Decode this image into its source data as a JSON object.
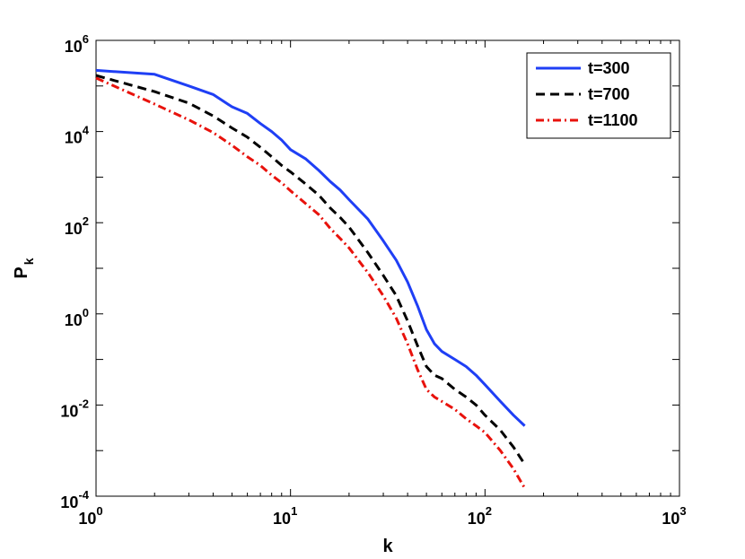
{
  "chart_data": {
    "type": "line",
    "xscale": "log",
    "yscale": "log",
    "xlim": [
      1,
      1000
    ],
    "ylim": [
      0.0001,
      1000000
    ],
    "xlabel": "k",
    "ylabel": "P",
    "ylabel_subscript": "k",
    "x_ticks": [
      {
        "value": 1,
        "base": "10",
        "exp": "0"
      },
      {
        "value": 10,
        "base": "10",
        "exp": "1"
      },
      {
        "value": 100,
        "base": "10",
        "exp": "2"
      },
      {
        "value": 1000,
        "base": "10",
        "exp": "3"
      }
    ],
    "y_ticks": [
      {
        "value": 0.0001,
        "base": "10",
        "exp": "-4"
      },
      {
        "value": 0.01,
        "base": "10",
        "exp": "-2"
      },
      {
        "value": 1,
        "base": "10",
        "exp": "0"
      },
      {
        "value": 100,
        "base": "10",
        "exp": "2"
      },
      {
        "value": 10000,
        "base": "10",
        "exp": "4"
      },
      {
        "value": 1000000,
        "base": "10",
        "exp": "6"
      }
    ],
    "grid": false,
    "legend_position": "top-right",
    "series": [
      {
        "name": "t=300",
        "color": "#1f3ff5",
        "style": "solid",
        "points": [
          [
            1,
            220000
          ],
          [
            2,
            180000
          ],
          [
            3,
            100000
          ],
          [
            4,
            65000
          ],
          [
            5,
            35000
          ],
          [
            6,
            25000
          ],
          [
            7,
            15000
          ],
          [
            8,
            10000
          ],
          [
            9,
            6500
          ],
          [
            10,
            4000
          ],
          [
            12,
            2500
          ],
          [
            14,
            1400
          ],
          [
            16,
            800
          ],
          [
            18,
            520
          ],
          [
            20,
            320
          ],
          [
            25,
            120
          ],
          [
            30,
            40
          ],
          [
            35,
            15
          ],
          [
            40,
            5
          ],
          [
            45,
            1.5
          ],
          [
            50,
            0.45
          ],
          [
            55,
            0.22
          ],
          [
            60,
            0.15
          ],
          [
            70,
            0.1
          ],
          [
            80,
            0.07
          ],
          [
            90,
            0.045
          ],
          [
            100,
            0.028
          ],
          [
            120,
            0.012
          ],
          [
            140,
            0.006
          ],
          [
            160,
            0.0035
          ]
        ]
      },
      {
        "name": "t=700",
        "color": "#000000",
        "style": "dashed",
        "points": [
          [
            1,
            170000
          ],
          [
            2,
            75000
          ],
          [
            3,
            42000
          ],
          [
            4,
            22000
          ],
          [
            5,
            12000
          ],
          [
            6,
            7500
          ],
          [
            7,
            4500
          ],
          [
            8,
            2800
          ],
          [
            9,
            1800
          ],
          [
            10,
            1300
          ],
          [
            12,
            700
          ],
          [
            14,
            400
          ],
          [
            16,
            210
          ],
          [
            18,
            130
          ],
          [
            20,
            80
          ],
          [
            25,
            22
          ],
          [
            30,
            7
          ],
          [
            35,
            2.5
          ],
          [
            40,
            0.7
          ],
          [
            45,
            0.2
          ],
          [
            50,
            0.07
          ],
          [
            55,
            0.045
          ],
          [
            60,
            0.038
          ],
          [
            70,
            0.022
          ],
          [
            80,
            0.015
          ],
          [
            90,
            0.01
          ],
          [
            100,
            0.006
          ],
          [
            120,
            0.0028
          ],
          [
            140,
            0.0012
          ],
          [
            160,
            0.0005
          ]
        ]
      },
      {
        "name": "t=1100",
        "color": "#e8120c",
        "style": "dashdot",
        "points": [
          [
            1,
            150000
          ],
          [
            2,
            40000
          ],
          [
            3,
            18000
          ],
          [
            4,
            9500
          ],
          [
            5,
            5000
          ],
          [
            6,
            2800
          ],
          [
            7,
            1800
          ],
          [
            8,
            1100
          ],
          [
            9,
            750
          ],
          [
            10,
            500
          ],
          [
            12,
            260
          ],
          [
            14,
            150
          ],
          [
            16,
            75
          ],
          [
            18,
            45
          ],
          [
            20,
            28
          ],
          [
            25,
            8
          ],
          [
            30,
            2.5
          ],
          [
            35,
            0.8
          ],
          [
            40,
            0.22
          ],
          [
            45,
            0.06
          ],
          [
            50,
            0.022
          ],
          [
            55,
            0.015
          ],
          [
            60,
            0.012
          ],
          [
            70,
            0.008
          ],
          [
            80,
            0.005
          ],
          [
            90,
            0.0035
          ],
          [
            100,
            0.0025
          ],
          [
            120,
            0.001
          ],
          [
            140,
            0.0004
          ],
          [
            160,
            0.00015
          ]
        ]
      }
    ]
  }
}
